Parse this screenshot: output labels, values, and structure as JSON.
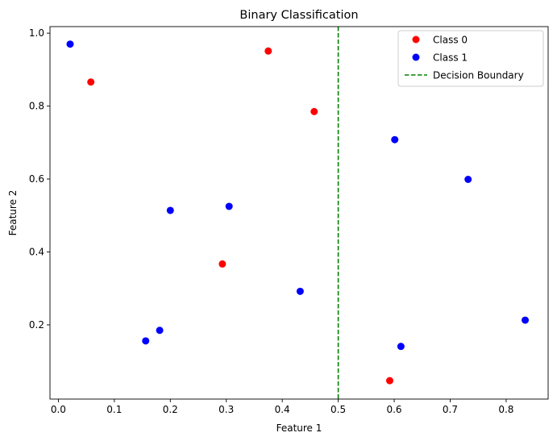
{
  "chart_data": {
    "type": "scatter",
    "title": "Binary Classification",
    "xlabel": "Feature 1",
    "ylabel": "Feature 2",
    "xlim": [
      -0.015,
      0.875
    ],
    "ylim": [
      -0.0035,
      1.018
    ],
    "xticks": [
      0.0,
      0.1,
      0.2,
      0.3,
      0.4,
      0.5,
      0.6,
      0.7,
      0.8
    ],
    "xtick_labels": [
      "0.0",
      "0.1",
      "0.2",
      "0.3",
      "0.4",
      "0.5",
      "0.6",
      "0.7",
      "0.8"
    ],
    "yticks": [
      0.2,
      0.4,
      0.6,
      0.8,
      1.0
    ],
    "ytick_labels": [
      "0.2",
      "0.4",
      "0.6",
      "0.8",
      "1.0"
    ],
    "grid": false,
    "legend_position": "top-right",
    "series": [
      {
        "name": "Class 0",
        "color": "#ff0000",
        "points": [
          {
            "x": 0.058,
            "y": 0.866
          },
          {
            "x": 0.375,
            "y": 0.951
          },
          {
            "x": 0.457,
            "y": 0.785
          },
          {
            "x": 0.293,
            "y": 0.367
          },
          {
            "x": 0.592,
            "y": 0.047
          }
        ]
      },
      {
        "name": "Class 1",
        "color": "#0000ff",
        "points": [
          {
            "x": 0.021,
            "y": 0.97
          },
          {
            "x": 0.601,
            "y": 0.708
          },
          {
            "x": 0.732,
            "y": 0.599
          },
          {
            "x": 0.2,
            "y": 0.514
          },
          {
            "x": 0.305,
            "y": 0.525
          },
          {
            "x": 0.432,
            "y": 0.292
          },
          {
            "x": 0.834,
            "y": 0.213
          },
          {
            "x": 0.181,
            "y": 0.185
          },
          {
            "x": 0.156,
            "y": 0.156
          },
          {
            "x": 0.612,
            "y": 0.141
          }
        ]
      }
    ],
    "decision_boundary": {
      "name": "Decision Boundary",
      "x": 0.5,
      "color": "#008000",
      "style": "dashed"
    }
  }
}
